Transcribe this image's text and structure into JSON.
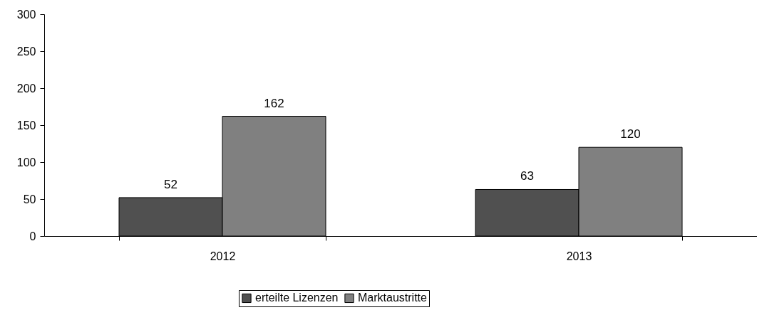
{
  "chart_data": {
    "type": "bar",
    "categories": [
      "2012",
      "2013"
    ],
    "series": [
      {
        "name": "erteilte Lizenzen",
        "color": "#505050",
        "values": [
          52,
          63
        ]
      },
      {
        "name": "Marktaustritte",
        "color": "#808080",
        "values": [
          162,
          120
        ]
      }
    ],
    "ylim": [
      0,
      300
    ],
    "yticks": [
      0,
      50,
      100,
      150,
      200,
      250,
      300
    ],
    "data_labels": true,
    "legend": "bottom",
    "grid": false
  }
}
